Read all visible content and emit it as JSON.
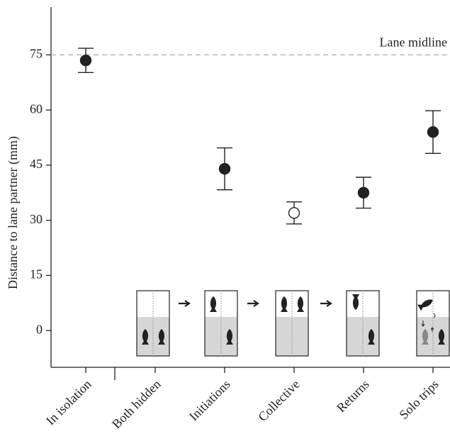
{
  "chart_data": {
    "type": "errorbar",
    "y_label": "Distance to lane partner (mm)",
    "categories": [
      "In isolation",
      "Both hidden",
      "Initiations",
      "Collective",
      "Returns",
      "Solo trips"
    ],
    "values": [
      73.5,
      null,
      44,
      32,
      37.5,
      54
    ],
    "errors": [
      3.3,
      null,
      5.7,
      3,
      4.2,
      5.8
    ],
    "markers": [
      "filled",
      null,
      "filled",
      "open",
      "filled",
      "filled"
    ],
    "color": "#222222",
    "ylim": [
      -10,
      88
    ],
    "yticks": [
      0,
      15,
      30,
      45,
      60,
      75
    ],
    "reference_line": {
      "value": 75,
      "label": "Lane midline",
      "color": "#aaaaaa"
    }
  }
}
